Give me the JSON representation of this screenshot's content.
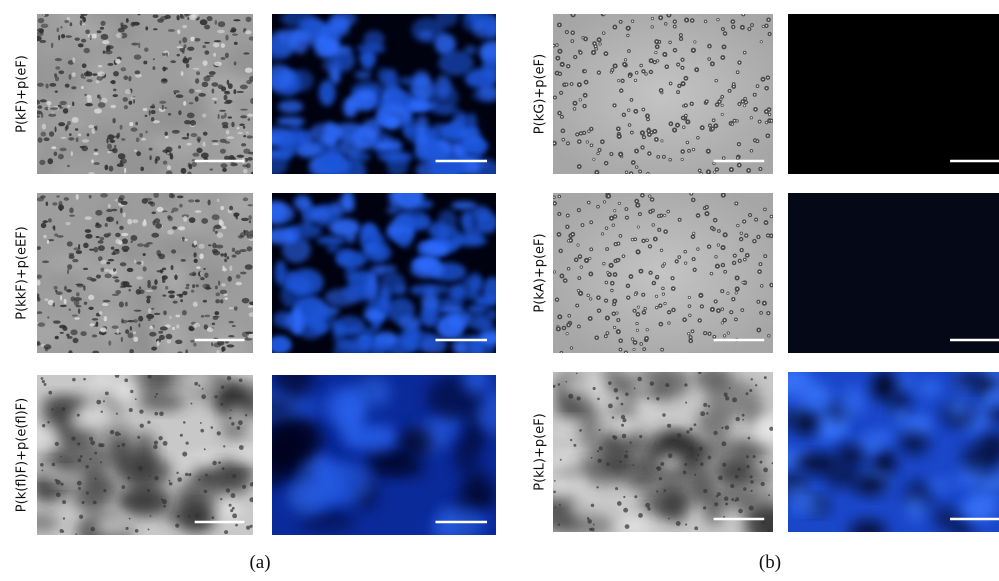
{
  "panels": [
    {
      "caption": "(a)",
      "rows": [
        {
          "label": "P(kF)+p(eF)"
        },
        {
          "label": "P(kkF)+p(eEF)"
        },
        {
          "label": "P(k(fl)F)+p(e(fl)F)"
        }
      ]
    },
    {
      "caption": "(b)",
      "rows": [
        {
          "label": "P(kG)+p(eF)"
        },
        {
          "label": "P(kA)+p(eF)"
        },
        {
          "label": "P(kL)+p(eF)"
        }
      ]
    }
  ]
}
